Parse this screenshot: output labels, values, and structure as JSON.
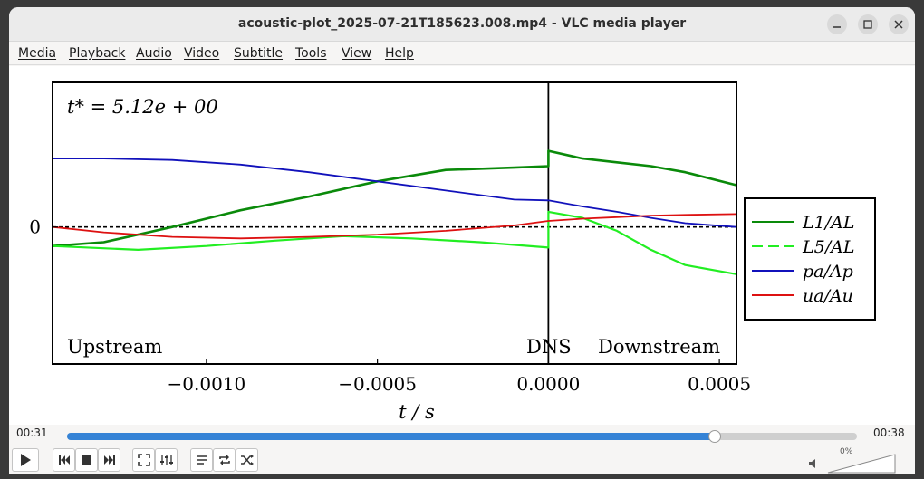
{
  "window": {
    "title": "acoustic-plot_2025-07-21T185623.008.mp4 - VLC media player"
  },
  "menu": [
    "Media",
    "Playback",
    "Audio",
    "Video",
    "Subtitle",
    "Tools",
    "View",
    "Help"
  ],
  "playback": {
    "elapsed": "00:31",
    "total": "00:38",
    "progress": 0.82,
    "volume": "0%"
  },
  "icons": {
    "minimize": "minimize-icon",
    "maximize": "maximize-icon",
    "close": "close-icon",
    "play": "play-icon",
    "previous": "skip-back-icon",
    "stop": "stop-icon",
    "next": "skip-forward-icon",
    "fullscreen": "fullscreen-icon",
    "extended": "equalizer-icon",
    "playlist": "playlist-icon",
    "loop": "loop-icon",
    "shuffle": "shuffle-icon",
    "volume": "speaker-muted-icon"
  },
  "colors": {
    "accent": "#3583d6",
    "L1": "#0a8a0a",
    "L5": "#22ee22",
    "pa": "#1111bb",
    "ua": "#dd1111"
  },
  "chart_data": {
    "type": "line",
    "annotation": "t* = 5.12e + 00",
    "xlabel": "t / s",
    "xlim": [
      -0.00145,
      0.00055
    ],
    "xticks": [
      -0.001,
      -0.0005,
      0.0,
      0.0005
    ],
    "xtick_labels": [
      "−0.0010",
      "−0.0005",
      "0.0000",
      "0.0005"
    ],
    "yticks": [
      0
    ],
    "ytick_labels": [
      "0"
    ],
    "ylim": [
      -1.8,
      1.9
    ],
    "region_labels": [
      "Upstream",
      "DNS",
      "Downstream"
    ],
    "legend_position": "right",
    "series": [
      {
        "name": "L1/AL",
        "style": "solid",
        "x": [
          -0.00145,
          -0.0013,
          -0.0011,
          -0.0009,
          -0.0007,
          -0.0005,
          -0.0003,
          -0.0001,
          0.0,
          0.0,
          0.0001,
          0.0002,
          0.0003,
          0.0004,
          0.00055
        ],
        "y": [
          -0.25,
          -0.2,
          0.0,
          0.22,
          0.4,
          0.6,
          0.75,
          0.78,
          0.8,
          1.0,
          0.9,
          0.85,
          0.8,
          0.72,
          0.55
        ]
      },
      {
        "name": "L5/AL",
        "style": "dashed",
        "x": [
          -0.00145,
          -0.0012,
          -0.001,
          -0.0008,
          -0.0006,
          -0.0004,
          -0.0002,
          0.0,
          0.0,
          0.0001,
          0.0002,
          0.0003,
          0.0004,
          0.00055
        ],
        "y": [
          -0.25,
          -0.3,
          -0.25,
          -0.18,
          -0.12,
          -0.15,
          -0.2,
          -0.27,
          0.2,
          0.12,
          -0.05,
          -0.3,
          -0.5,
          -0.62
        ]
      },
      {
        "name": "pa/Ap",
        "style": "solid",
        "x": [
          -0.00145,
          -0.0013,
          -0.0011,
          -0.0009,
          -0.0007,
          -0.0005,
          -0.0003,
          -0.0001,
          0.0,
          0.0001,
          0.0002,
          0.0003,
          0.0004,
          0.00055
        ],
        "y": [
          0.9,
          0.9,
          0.88,
          0.82,
          0.72,
          0.6,
          0.48,
          0.36,
          0.35,
          0.27,
          0.2,
          0.12,
          0.05,
          0.0
        ]
      },
      {
        "name": "ua/Au",
        "style": "solid",
        "x": [
          -0.00145,
          -0.0013,
          -0.0011,
          -0.0009,
          -0.0007,
          -0.0005,
          -0.0003,
          -0.0001,
          0.0,
          0.0001,
          0.0002,
          0.0003,
          0.0004,
          0.00055
        ],
        "y": [
          0.0,
          -0.07,
          -0.13,
          -0.15,
          -0.13,
          -0.1,
          -0.05,
          0.02,
          0.08,
          0.11,
          0.13,
          0.15,
          0.16,
          0.17
        ]
      }
    ]
  }
}
